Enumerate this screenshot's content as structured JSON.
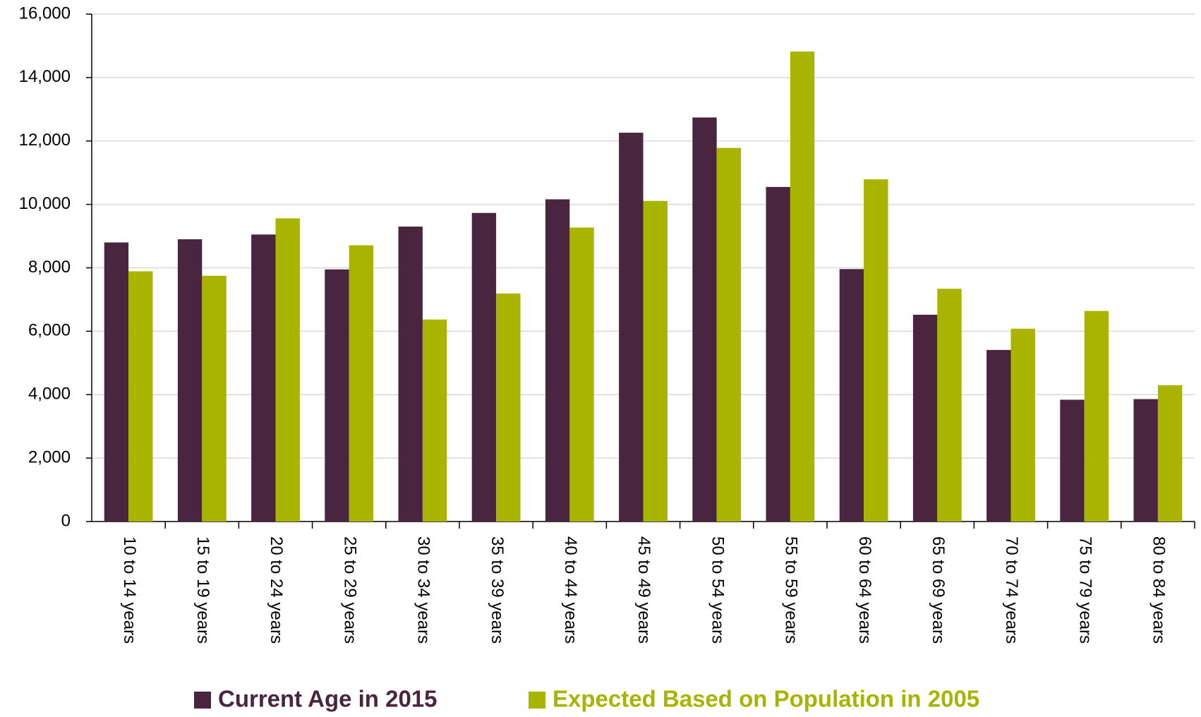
{
  "chart_data": {
    "type": "bar",
    "categories": [
      "10 to 14 years",
      "15 to 19 years",
      "20 to 24 years",
      "25 to 29 years",
      "30 to 34 years",
      "35 to 39 years",
      "40 to 44 years",
      "45 to 49 years",
      "50 to 54 years",
      "55 to 59 years",
      "60 to 64 years",
      "65 to 69 years",
      "70 to 74 years",
      "75 to 79 years",
      "80 to 84 years"
    ],
    "series": [
      {
        "name": "Current Age in 2015",
        "color": "#4a2540",
        "values": [
          8800,
          8900,
          9050,
          7950,
          9300,
          9730,
          10160,
          12260,
          12740,
          10550,
          7960,
          6520,
          5410,
          3840,
          3860
        ]
      },
      {
        "name": "Expected Based on Population in 2005",
        "color": "#a9b400",
        "values": [
          7890,
          7750,
          9560,
          8710,
          6370,
          7190,
          9270,
          10110,
          11780,
          14820,
          10790,
          7340,
          6080,
          6640,
          4300
        ]
      }
    ],
    "ylim": [
      0,
      16000
    ],
    "yticks": [
      0,
      {
        "value": 2000,
        "label": "2,000"
      },
      {
        "value": 4000,
        "label": "4,000"
      },
      {
        "value": 6000,
        "label": "6,000"
      },
      {
        "value": 8000,
        "label": "8,000"
      },
      {
        "value": 10000,
        "label": "10,000"
      },
      {
        "value": 12000,
        "label": "12,000"
      },
      {
        "value": 14000,
        "label": "14,000"
      },
      {
        "value": 16000,
        "label": "16,000"
      }
    ],
    "grid": true,
    "legend": "bottom"
  }
}
